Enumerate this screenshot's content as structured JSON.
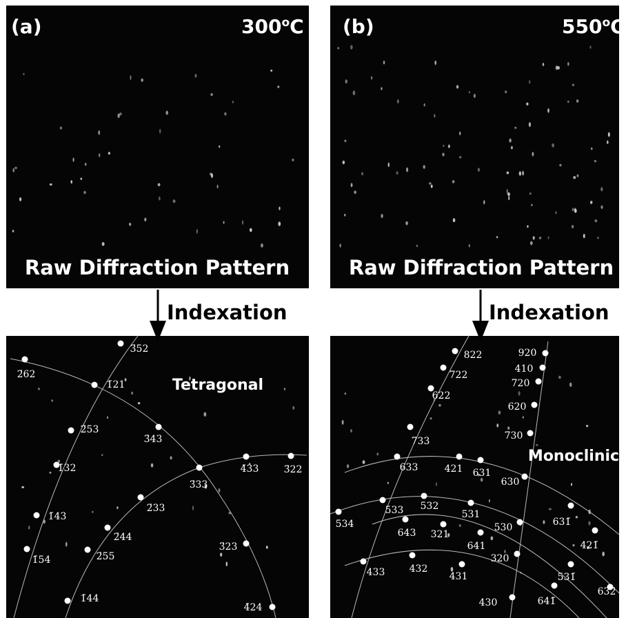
{
  "raw_panels": [
    {
      "label": "(a)",
      "temperature": {
        "number": "300",
        "degree": "o",
        "unit": "C"
      },
      "caption": "Raw Diffraction Pattern"
    },
    {
      "label": "(b)",
      "temperature": {
        "number": "550",
        "degree": "o",
        "unit": "C"
      },
      "caption": "Raw Diffraction Pattern"
    }
  ],
  "arrows": [
    {
      "label": "Indexation"
    },
    {
      "label": "Indexation"
    }
  ],
  "indexed_panels": [
    {
      "phase": "Tetragonal",
      "spots": [
        "3̄52",
        "2̄62",
        "1̄21",
        "2̄53",
        "3̄43",
        "1̄32",
        "3̄33",
        "4̄33",
        "3̄22",
        "2̄33",
        "1̄43",
        "2̄44",
        "1̄54",
        "2̄55",
        "3̄23",
        "1̄44",
        "4̄24"
      ]
    },
    {
      "phase": "Monoclinic",
      "spots": [
        "822",
        "722",
        "622",
        "733",
        "633",
        "421",
        "631",
        "920",
        "410",
        "720",
        "620",
        "730",
        "630",
        "533",
        "532",
        "531",
        "534",
        "643",
        "321",
        "530",
        "641",
        "631̄",
        "421̄",
        "320",
        "531̄",
        "632̄",
        "433",
        "432",
        "431",
        "641̄",
        "430"
      ]
    }
  ]
}
